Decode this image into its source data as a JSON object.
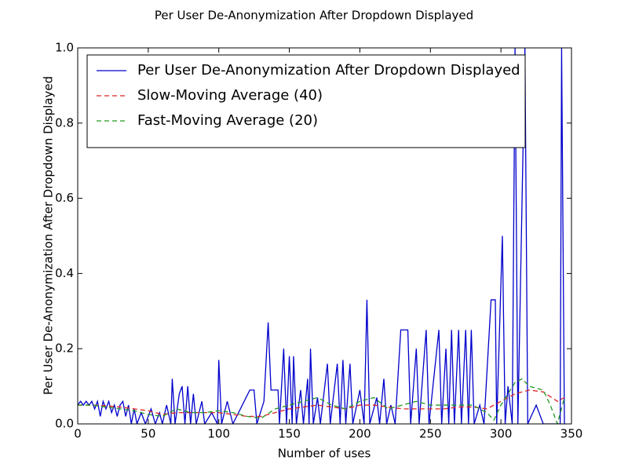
{
  "chart_data": {
    "type": "line",
    "title": "Per User De-Anonymization After Dropdown Displayed",
    "x_label": "Number of uses",
    "y_label": "Per User De-Anonymization After Dropdown Displayed",
    "xlim": [
      0,
      350
    ],
    "ylim": [
      0,
      1
    ],
    "xticks": [
      0,
      50,
      100,
      150,
      200,
      250,
      300,
      350
    ],
    "yticks": [
      {
        "value": 0,
        "label": "0.0"
      },
      0.2,
      0.4,
      0.6,
      0.8,
      {
        "value": 1,
        "label": "1.0"
      }
    ],
    "legend_position": "upper left",
    "series": [
      {
        "name": "Per User De-Anonymization After Dropdown Displayed",
        "color": "#0000cc",
        "linestyle": "solid",
        "x": [
          0,
          2,
          4,
          6,
          8,
          10,
          12,
          14,
          16,
          18,
          20,
          22,
          24,
          26,
          28,
          30,
          32,
          34,
          36,
          38,
          40,
          42,
          45,
          48,
          52,
          55,
          58,
          60,
          63,
          66,
          67,
          69,
          72,
          74,
          76,
          78,
          80,
          82,
          84,
          88,
          90,
          95,
          99,
          100,
          102,
          106,
          110,
          122,
          125,
          127,
          132,
          135,
          137,
          142,
          143,
          146,
          148,
          150,
          152,
          153,
          155,
          158,
          160,
          163,
          164,
          165,
          167,
          170,
          172,
          177,
          179,
          184,
          186,
          188,
          190,
          193,
          195,
          200,
          203,
          205,
          207,
          212,
          214,
          217,
          219,
          222,
          225,
          229,
          234,
          236,
          240,
          242,
          247,
          249,
          256,
          258,
          261,
          263,
          265,
          267,
          270,
          272,
          275,
          277,
          279,
          281,
          285,
          288,
          293,
          296,
          297,
          301,
          303,
          305,
          308,
          310,
          312,
          317,
          319,
          325,
          330,
          342,
          343,
          345
        ],
        "values": [
          0.05,
          0.06,
          0.05,
          0.06,
          0.05,
          0.06,
          0.04,
          0.06,
          0.02,
          0.06,
          0.04,
          0.06,
          0.03,
          0.05,
          0.02,
          0.05,
          0.06,
          0.02,
          0.05,
          0,
          0.04,
          0,
          0.03,
          0,
          0.04,
          0,
          0.03,
          0,
          0.05,
          0,
          0.12,
          0,
          0.08,
          0.1,
          0,
          0.1,
          0,
          0.08,
          0,
          0.06,
          0,
          0.03,
          0,
          0.17,
          0,
          0.06,
          0,
          0.09,
          0.09,
          0,
          0.06,
          0.27,
          0.09,
          0.09,
          0,
          0.2,
          0,
          0.18,
          0,
          0.18,
          0,
          0.09,
          0,
          0.12,
          0,
          0.2,
          0,
          0.07,
          0,
          0.16,
          0,
          0.16,
          0,
          0.17,
          0,
          0.16,
          0,
          0.09,
          0,
          0.33,
          0,
          0.07,
          0,
          0.12,
          0,
          0.05,
          0,
          0.25,
          0.25,
          0,
          0.2,
          0,
          0.25,
          0,
          0.25,
          0,
          0.2,
          0,
          0.25,
          0,
          0.25,
          0,
          0.25,
          0,
          0.25,
          0,
          0.05,
          0,
          0.33,
          0.33,
          0,
          0.5,
          0,
          0.1,
          0,
          1,
          0,
          1,
          0,
          0.05,
          0,
          0,
          1,
          0
        ]
      },
      {
        "name": "Slow-Moving Average (40)",
        "color": "#dd2222",
        "linestyle": "dashed",
        "x": [
          0,
          10,
          20,
          30,
          40,
          50,
          60,
          70,
          80,
          90,
          100,
          110,
          120,
          130,
          140,
          150,
          160,
          170,
          180,
          190,
          200,
          210,
          220,
          230,
          240,
          250,
          260,
          270,
          280,
          290,
          300,
          310,
          320,
          330,
          340,
          345
        ],
        "values": [
          0.05,
          0.05,
          0.048,
          0.045,
          0.04,
          0.035,
          0.025,
          0.03,
          0.03,
          0.03,
          0.03,
          0.025,
          0.02,
          0.02,
          0.03,
          0.04,
          0.045,
          0.05,
          0.045,
          0.04,
          0.05,
          0.05,
          0.045,
          0.04,
          0.04,
          0.04,
          0.04,
          0.045,
          0.045,
          0.04,
          0.06,
          0.08,
          0.09,
          0.085,
          0.06,
          0.07
        ]
      },
      {
        "name": "Fast-Moving Average (20)",
        "color": "#229922",
        "linestyle": "dashed",
        "x": [
          0,
          10,
          20,
          30,
          40,
          50,
          60,
          70,
          80,
          90,
          100,
          110,
          120,
          130,
          140,
          150,
          160,
          170,
          180,
          190,
          200,
          210,
          220,
          230,
          240,
          250,
          260,
          270,
          280,
          290,
          295,
          300,
          310,
          315,
          320,
          330,
          335,
          340,
          345
        ],
        "values": [
          0.05,
          0.05,
          0.045,
          0.04,
          0.035,
          0.025,
          0.02,
          0.04,
          0.03,
          0.03,
          0.035,
          0.03,
          0.02,
          0.015,
          0.04,
          0.05,
          0.06,
          0.07,
          0.05,
          0.04,
          0.06,
          0.07,
          0.04,
          0.05,
          0.06,
          0.05,
          0.05,
          0.05,
          0.05,
          0.03,
          0.01,
          0.05,
          0.11,
          0.12,
          0.1,
          0.09,
          0.05,
          0,
          0.07
        ]
      }
    ]
  }
}
